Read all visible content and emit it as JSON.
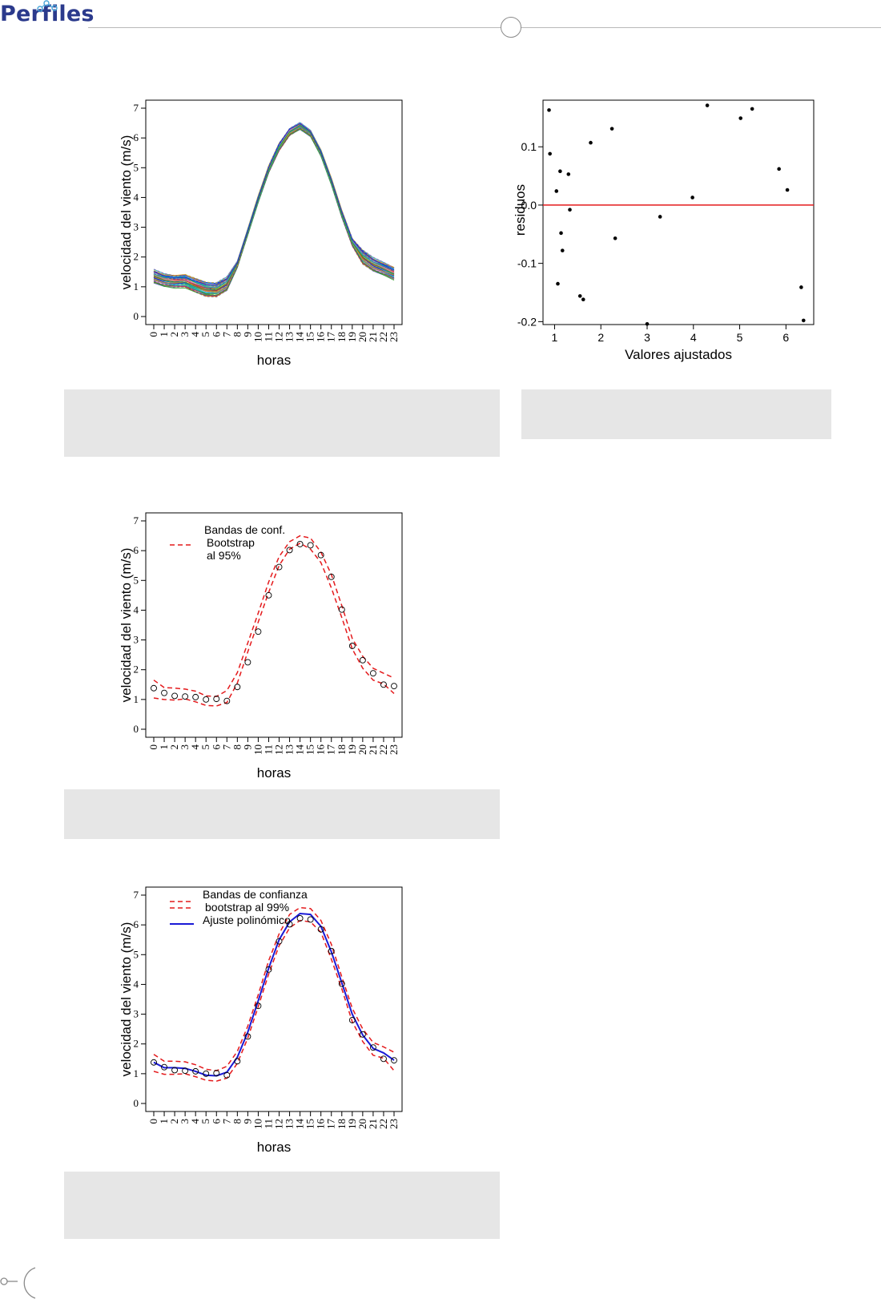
{
  "header": {
    "logo_text": "Perfiles"
  },
  "colors": {
    "brand": "#2b3a8c",
    "caption_bg": "#e6e6e6",
    "red": "#e41a1c",
    "blue": "#1a1ad6"
  },
  "chart_data": [
    {
      "id": "curves",
      "type": "line",
      "title": "",
      "xlabel": "horas",
      "ylabel": "velocidad del viento (m/s)",
      "x": [
        0,
        1,
        2,
        3,
        4,
        5,
        6,
        7,
        8,
        9,
        10,
        11,
        12,
        13,
        14,
        15,
        16,
        17,
        18,
        19,
        20,
        21,
        22,
        23
      ],
      "xticks": [
        "0",
        "1",
        "2",
        "3",
        "4",
        "5",
        "6",
        "7",
        "8",
        "9",
        "10",
        "11",
        "12",
        "13",
        "14",
        "15",
        "16",
        "17",
        "18",
        "19",
        "20",
        "21",
        "22",
        "23"
      ],
      "ylim": [
        0,
        7
      ],
      "yticks": [
        "0",
        "1",
        "2",
        "3",
        "4",
        "5",
        "6",
        "7"
      ],
      "series": [
        {
          "values": [
            1.35,
            1.22,
            1.18,
            1.2,
            1.05,
            0.92,
            0.9,
            1.1,
            1.75,
            2.85,
            3.95,
            4.95,
            5.7,
            6.2,
            6.4,
            6.15,
            5.5,
            4.55,
            3.45,
            2.5,
            2.0,
            1.75,
            1.6,
            1.45
          ]
        }
      ],
      "band_spread": 0.2,
      "grid": false
    },
    {
      "id": "residuals",
      "type": "scatter",
      "title": "",
      "xlabel": "Valores ajustados",
      "ylabel": "residuos",
      "xlim": [
        0.75,
        6.6
      ],
      "ylim": [
        -0.205,
        0.18
      ],
      "xticks": [
        "1",
        "2",
        "3",
        "4",
        "5",
        "6"
      ],
      "yticks": [
        "-0.2",
        "-0.1",
        "0.0",
        "0.1"
      ],
      "reference_line": 0.0,
      "points": [
        [
          0.88,
          0.163
        ],
        [
          0.9,
          0.088
        ],
        [
          1.04,
          0.024
        ],
        [
          1.07,
          -0.135
        ],
        [
          1.12,
          0.058
        ],
        [
          1.14,
          -0.048
        ],
        [
          1.17,
          -0.078
        ],
        [
          1.3,
          0.053
        ],
        [
          1.33,
          -0.008
        ],
        [
          1.55,
          -0.156
        ],
        [
          1.62,
          -0.162
        ],
        [
          1.78,
          0.107
        ],
        [
          2.24,
          0.131
        ],
        [
          2.31,
          -0.057
        ],
        [
          3.0,
          -0.204
        ],
        [
          3.28,
          -0.02
        ],
        [
          3.98,
          0.013
        ],
        [
          4.3,
          0.171
        ],
        [
          5.02,
          0.149
        ],
        [
          5.27,
          0.165
        ],
        [
          5.85,
          0.062
        ],
        [
          6.03,
          0.026
        ],
        [
          6.33,
          -0.141
        ],
        [
          6.38,
          -0.198
        ]
      ],
      "grid": false
    },
    {
      "id": "bands95",
      "type": "line",
      "title": "",
      "xlabel": "horas",
      "ylabel": "velocidad del viento (m/s)",
      "x": [
        0,
        1,
        2,
        3,
        4,
        5,
        6,
        7,
        8,
        9,
        10,
        11,
        12,
        13,
        14,
        15,
        16,
        17,
        18,
        19,
        20,
        21,
        22,
        23
      ],
      "xticks": [
        "0",
        "1",
        "2",
        "3",
        "4",
        "5",
        "6",
        "7",
        "8",
        "9",
        "10",
        "11",
        "12",
        "13",
        "14",
        "15",
        "16",
        "17",
        "18",
        "19",
        "20",
        "21",
        "22",
        "23"
      ],
      "ylim": [
        0,
        7
      ],
      "yticks": [
        "0",
        "1",
        "2",
        "3",
        "4",
        "5",
        "6",
        "7"
      ],
      "observed": [
        1.38,
        1.22,
        1.12,
        1.1,
        1.08,
        1.0,
        1.02,
        0.95,
        1.42,
        2.25,
        3.28,
        4.5,
        5.45,
        6.02,
        6.22,
        6.18,
        5.85,
        5.12,
        4.02,
        2.8,
        2.32,
        1.88,
        1.5,
        1.45
      ],
      "upper": [
        1.65,
        1.4,
        1.38,
        1.35,
        1.28,
        1.12,
        1.1,
        1.3,
        1.9,
        2.9,
        3.9,
        4.95,
        5.8,
        6.3,
        6.5,
        6.42,
        5.95,
        5.2,
        4.15,
        3.05,
        2.45,
        2.05,
        1.88,
        1.72
      ],
      "lower": [
        1.05,
        1.0,
        0.98,
        1.02,
        0.92,
        0.8,
        0.78,
        0.9,
        1.55,
        2.6,
        3.6,
        4.6,
        5.5,
        6.05,
        6.25,
        6.05,
        5.6,
        4.75,
        3.75,
        2.7,
        2.05,
        1.65,
        1.52,
        1.2
      ],
      "legend": {
        "position": "top-left",
        "entries": [
          "Bandas de conf.",
          "Bootstrap",
          "al 95%"
        ]
      },
      "grid": false
    },
    {
      "id": "bands99",
      "type": "line",
      "title": "",
      "xlabel": "horas",
      "ylabel": "velocidad del viento (m/s)",
      "x": [
        0,
        1,
        2,
        3,
        4,
        5,
        6,
        7,
        8,
        9,
        10,
        11,
        12,
        13,
        14,
        15,
        16,
        17,
        18,
        19,
        20,
        21,
        22,
        23
      ],
      "xticks": [
        "0",
        "1",
        "2",
        "3",
        "4",
        "5",
        "6",
        "7",
        "8",
        "9",
        "10",
        "11",
        "12",
        "13",
        "14",
        "15",
        "16",
        "17",
        "18",
        "19",
        "20",
        "21",
        "22",
        "23"
      ],
      "ylim": [
        0,
        7
      ],
      "yticks": [
        "0",
        "1",
        "2",
        "3",
        "4",
        "5",
        "6",
        "7"
      ],
      "observed": [
        1.38,
        1.22,
        1.12,
        1.1,
        1.08,
        1.0,
        1.02,
        0.95,
        1.42,
        2.25,
        3.28,
        4.5,
        5.45,
        6.02,
        6.22,
        6.18,
        5.85,
        5.12,
        4.02,
        2.8,
        2.32,
        1.88,
        1.5,
        1.45
      ],
      "fit": [
        1.38,
        1.2,
        1.2,
        1.18,
        1.08,
        0.95,
        0.93,
        1.05,
        1.55,
        2.4,
        3.45,
        4.55,
        5.5,
        6.1,
        6.38,
        6.35,
        5.95,
        5.1,
        4.05,
        3.0,
        2.3,
        1.85,
        1.7,
        1.45
      ],
      "upper": [
        1.65,
        1.42,
        1.42,
        1.4,
        1.3,
        1.15,
        1.1,
        1.25,
        1.75,
        2.6,
        3.65,
        4.8,
        5.7,
        6.35,
        6.58,
        6.55,
        6.15,
        5.35,
        4.25,
        3.2,
        2.5,
        2.05,
        1.9,
        1.72
      ],
      "lower": [
        1.08,
        0.98,
        0.98,
        1.0,
        0.9,
        0.78,
        0.75,
        0.85,
        1.35,
        2.2,
        3.25,
        4.35,
        5.3,
        5.9,
        6.15,
        6.1,
        5.75,
        4.85,
        3.85,
        2.75,
        2.08,
        1.62,
        1.52,
        1.1
      ],
      "legend": {
        "position": "top-left",
        "entries": [
          "Bandas de confianza",
          "bootstrap al 99%",
          "Ajuste polinómico"
        ]
      },
      "grid": false
    }
  ]
}
